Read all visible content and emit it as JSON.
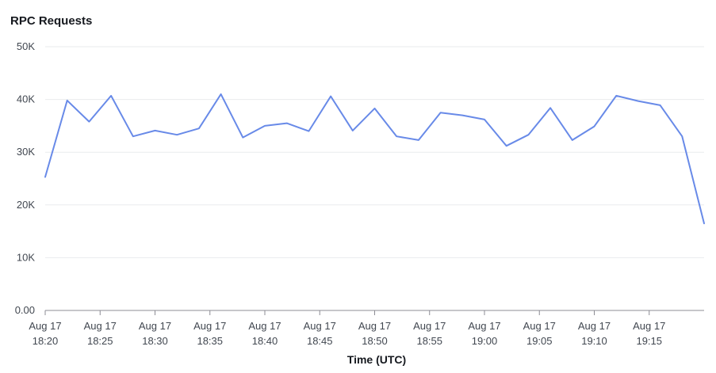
{
  "chart_data": {
    "type": "line",
    "title": "RPC Requests",
    "xlabel": "Time (UTC)",
    "ylabel": "",
    "ylim": [
      0,
      50000
    ],
    "yticks": [
      {
        "value": 0,
        "label": "0.00"
      },
      {
        "value": 10000,
        "label": "10K"
      },
      {
        "value": 20000,
        "label": "20K"
      },
      {
        "value": 30000,
        "label": "30K"
      },
      {
        "value": 40000,
        "label": "40K"
      },
      {
        "value": 50000,
        "label": "50K"
      }
    ],
    "xlim": [
      "2023-08-17 18:20",
      "2023-08-17 19:20"
    ],
    "xticks": [
      {
        "time": "18:20",
        "line1": "Aug 17",
        "line2": "18:20"
      },
      {
        "time": "18:25",
        "line1": "Aug 17",
        "line2": "18:25"
      },
      {
        "time": "18:30",
        "line1": "Aug 17",
        "line2": "18:30"
      },
      {
        "time": "18:35",
        "line1": "Aug 17",
        "line2": "18:35"
      },
      {
        "time": "18:40",
        "line1": "Aug 17",
        "line2": "18:40"
      },
      {
        "time": "18:45",
        "line1": "Aug 17",
        "line2": "18:45"
      },
      {
        "time": "18:50",
        "line1": "Aug 17",
        "line2": "18:50"
      },
      {
        "time": "18:55",
        "line1": "Aug 17",
        "line2": "18:55"
      },
      {
        "time": "19:00",
        "line1": "Aug 17",
        "line2": "19:00"
      },
      {
        "time": "19:05",
        "line1": "Aug 17",
        "line2": "19:05"
      },
      {
        "time": "19:10",
        "line1": "Aug 17",
        "line2": "19:10"
      },
      {
        "time": "19:15",
        "line1": "Aug 17",
        "line2": "19:15"
      }
    ],
    "grid": true,
    "series": [
      {
        "color": "#688ae8",
        "points": [
          {
            "x": "18:20",
            "y": 25300
          },
          {
            "x": "18:22",
            "y": 39800
          },
          {
            "x": "18:24",
            "y": 35800
          },
          {
            "x": "18:26",
            "y": 40700
          },
          {
            "x": "18:28",
            "y": 33000
          },
          {
            "x": "18:30",
            "y": 34100
          },
          {
            "x": "18:32",
            "y": 33300
          },
          {
            "x": "18:34",
            "y": 34500
          },
          {
            "x": "18:36",
            "y": 41000
          },
          {
            "x": "18:38",
            "y": 32800
          },
          {
            "x": "18:40",
            "y": 35000
          },
          {
            "x": "18:42",
            "y": 35500
          },
          {
            "x": "18:44",
            "y": 34000
          },
          {
            "x": "18:46",
            "y": 40600
          },
          {
            "x": "18:48",
            "y": 34100
          },
          {
            "x": "18:50",
            "y": 38300
          },
          {
            "x": "18:52",
            "y": 33000
          },
          {
            "x": "18:54",
            "y": 32300
          },
          {
            "x": "18:56",
            "y": 37500
          },
          {
            "x": "18:58",
            "y": 37000
          },
          {
            "x": "19:00",
            "y": 36200
          },
          {
            "x": "19:02",
            "y": 31200
          },
          {
            "x": "19:04",
            "y": 33300
          },
          {
            "x": "19:06",
            "y": 38400
          },
          {
            "x": "19:08",
            "y": 32300
          },
          {
            "x": "19:10",
            "y": 34900
          },
          {
            "x": "19:12",
            "y": 40700
          },
          {
            "x": "19:14",
            "y": 39700
          },
          {
            "x": "19:16",
            "y": 38900
          },
          {
            "x": "19:18",
            "y": 33000
          },
          {
            "x": "19:20",
            "y": 16500
          }
        ]
      }
    ]
  }
}
